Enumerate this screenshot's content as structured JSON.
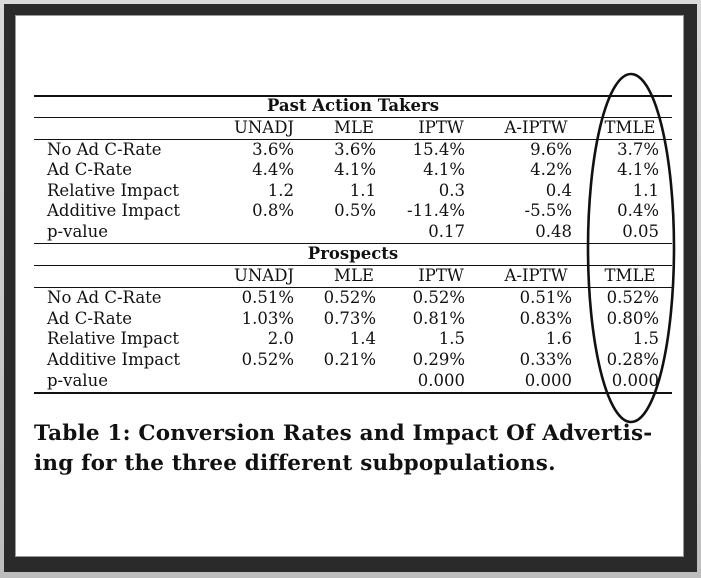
{
  "table": {
    "columns": [
      "UNADJ",
      "MLE",
      "IPTW",
      "A-IPTW",
      "TMLE"
    ],
    "groups": [
      {
        "title": "Past Action Takers",
        "rows": [
          {
            "label": "No Ad C-Rate",
            "values": [
              "3.6%",
              "3.6%",
              "15.4%",
              "9.6%",
              "3.7%"
            ]
          },
          {
            "label": "Ad C-Rate",
            "values": [
              "4.4%",
              "4.1%",
              "4.1%",
              "4.2%",
              "4.1%"
            ]
          },
          {
            "label": "Relative Impact",
            "values": [
              "1.2",
              "1.1",
              "0.3",
              "0.4",
              "1.1"
            ]
          },
          {
            "label": "Additive Impact",
            "values": [
              "0.8%",
              "0.5%",
              "-11.4%",
              "-5.5%",
              "0.4%"
            ]
          },
          {
            "label": "p-value",
            "values": [
              "",
              "",
              "0.17",
              "0.48",
              "0.05"
            ]
          }
        ]
      },
      {
        "title": "Prospects",
        "rows": [
          {
            "label": "No Ad C-Rate",
            "values": [
              "0.51%",
              "0.52%",
              "0.52%",
              "0.51%",
              "0.52%"
            ]
          },
          {
            "label": "Ad C-Rate",
            "values": [
              "1.03%",
              "0.73%",
              "0.81%",
              "0.83%",
              "0.80%"
            ]
          },
          {
            "label": "Relative Impact",
            "values": [
              "2.0",
              "1.4",
              "1.5",
              "1.6",
              "1.5"
            ]
          },
          {
            "label": "Additive Impact",
            "values": [
              "0.52%",
              "0.21%",
              "0.29%",
              "0.33%",
              "0.28%"
            ]
          },
          {
            "label": "p-value",
            "values": [
              "",
              "",
              "0.000",
              "0.000",
              "0.000"
            ]
          }
        ]
      }
    ]
  },
  "caption": {
    "line1": "Table 1:  Conversion Rates and Impact Of Advertis-",
    "line2": "ing for the three different subpopulations."
  }
}
